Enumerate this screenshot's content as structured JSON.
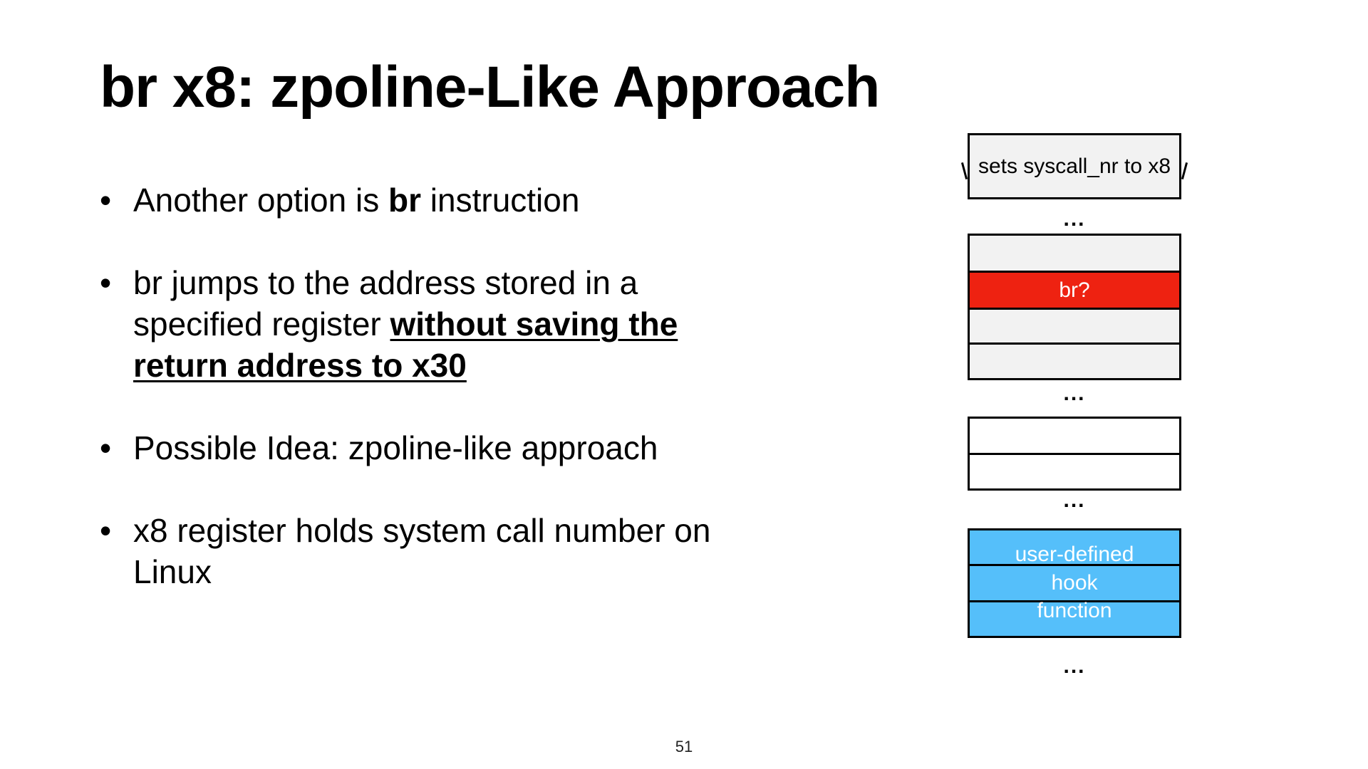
{
  "slide": {
    "title": "br x8: zpoline-Like Approach",
    "page_number": "51",
    "bullet_symbol": "•",
    "bullets": [
      {
        "pre": "Another option is ",
        "bold": "br",
        "post": " instruction"
      },
      {
        "pre": "br jumps to the address stored in a specified register ",
        "bold_underline": "without saving the return address to x30"
      },
      {
        "text": "Possible Idea: zpoline-like approach"
      },
      {
        "text": "x8 register holds system call number on Linux"
      }
    ]
  },
  "diagram": {
    "top_box": "sets syscall_nr to x8",
    "highlight_row": "br?",
    "hook_label_lines": [
      "user-defined",
      "hook",
      "function"
    ],
    "ellipsis": "...",
    "colors": {
      "gray": "#f2f2f2",
      "red": "#ee2211",
      "blue": "#55bffa"
    }
  }
}
